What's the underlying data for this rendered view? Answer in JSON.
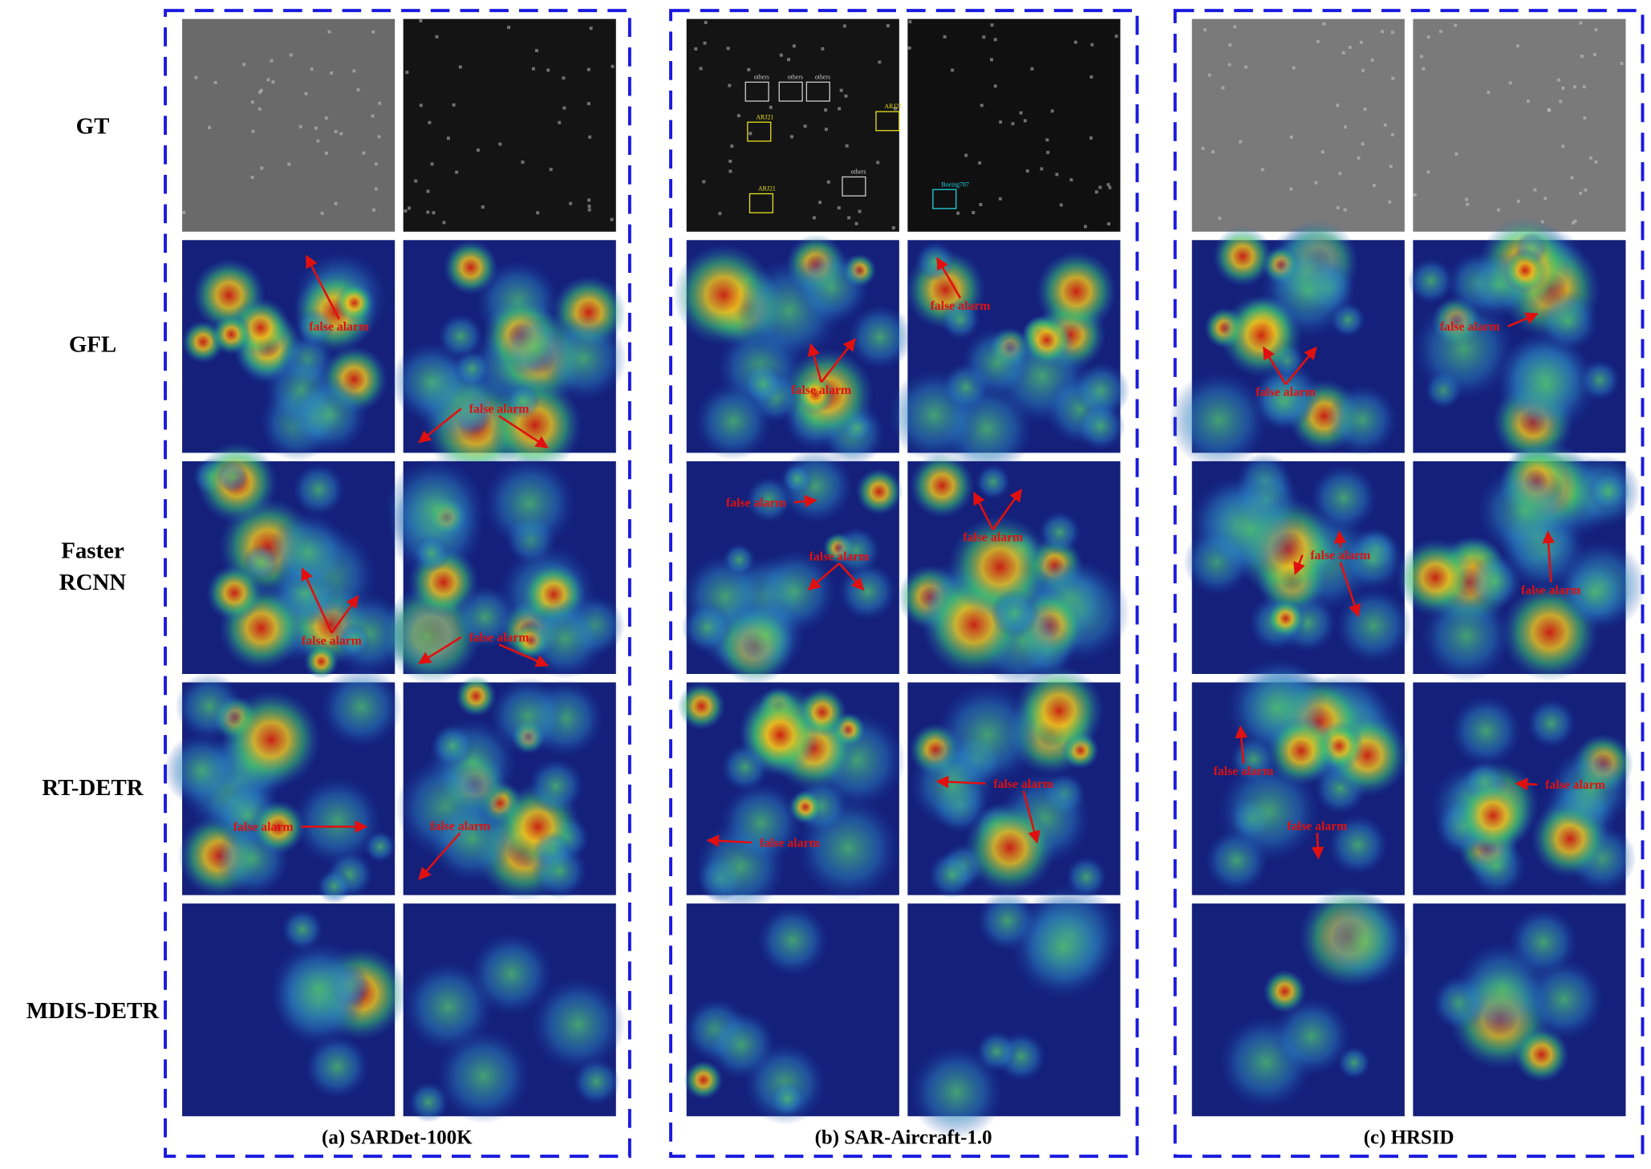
{
  "row_labels": [
    "GT",
    "GFL",
    "Faster RCNN",
    "RT-DETR",
    "MDIS-DETR"
  ],
  "captions": [
    "(a) SARDet-100K",
    "(b) SAR-Aircraft-1.0",
    "(c) HRSID"
  ],
  "gt_labels": [
    "others",
    "others",
    "others",
    "ARJ21",
    "ARJ21",
    "ARJ21",
    "others",
    "Boeing787"
  ],
  "annotations": [
    "false alarm",
    "false alarm",
    "false alarm",
    "false alarm",
    "false alarm",
    "false alarm",
    "false alarm",
    "false alarm",
    "false alarm",
    "false alarm",
    "false alarm",
    "false alarm",
    "false alarm",
    "false alarm",
    "false alarm",
    "false alarm",
    "false alarm",
    "false alarm",
    "false alarm",
    "false alarm"
  ]
}
